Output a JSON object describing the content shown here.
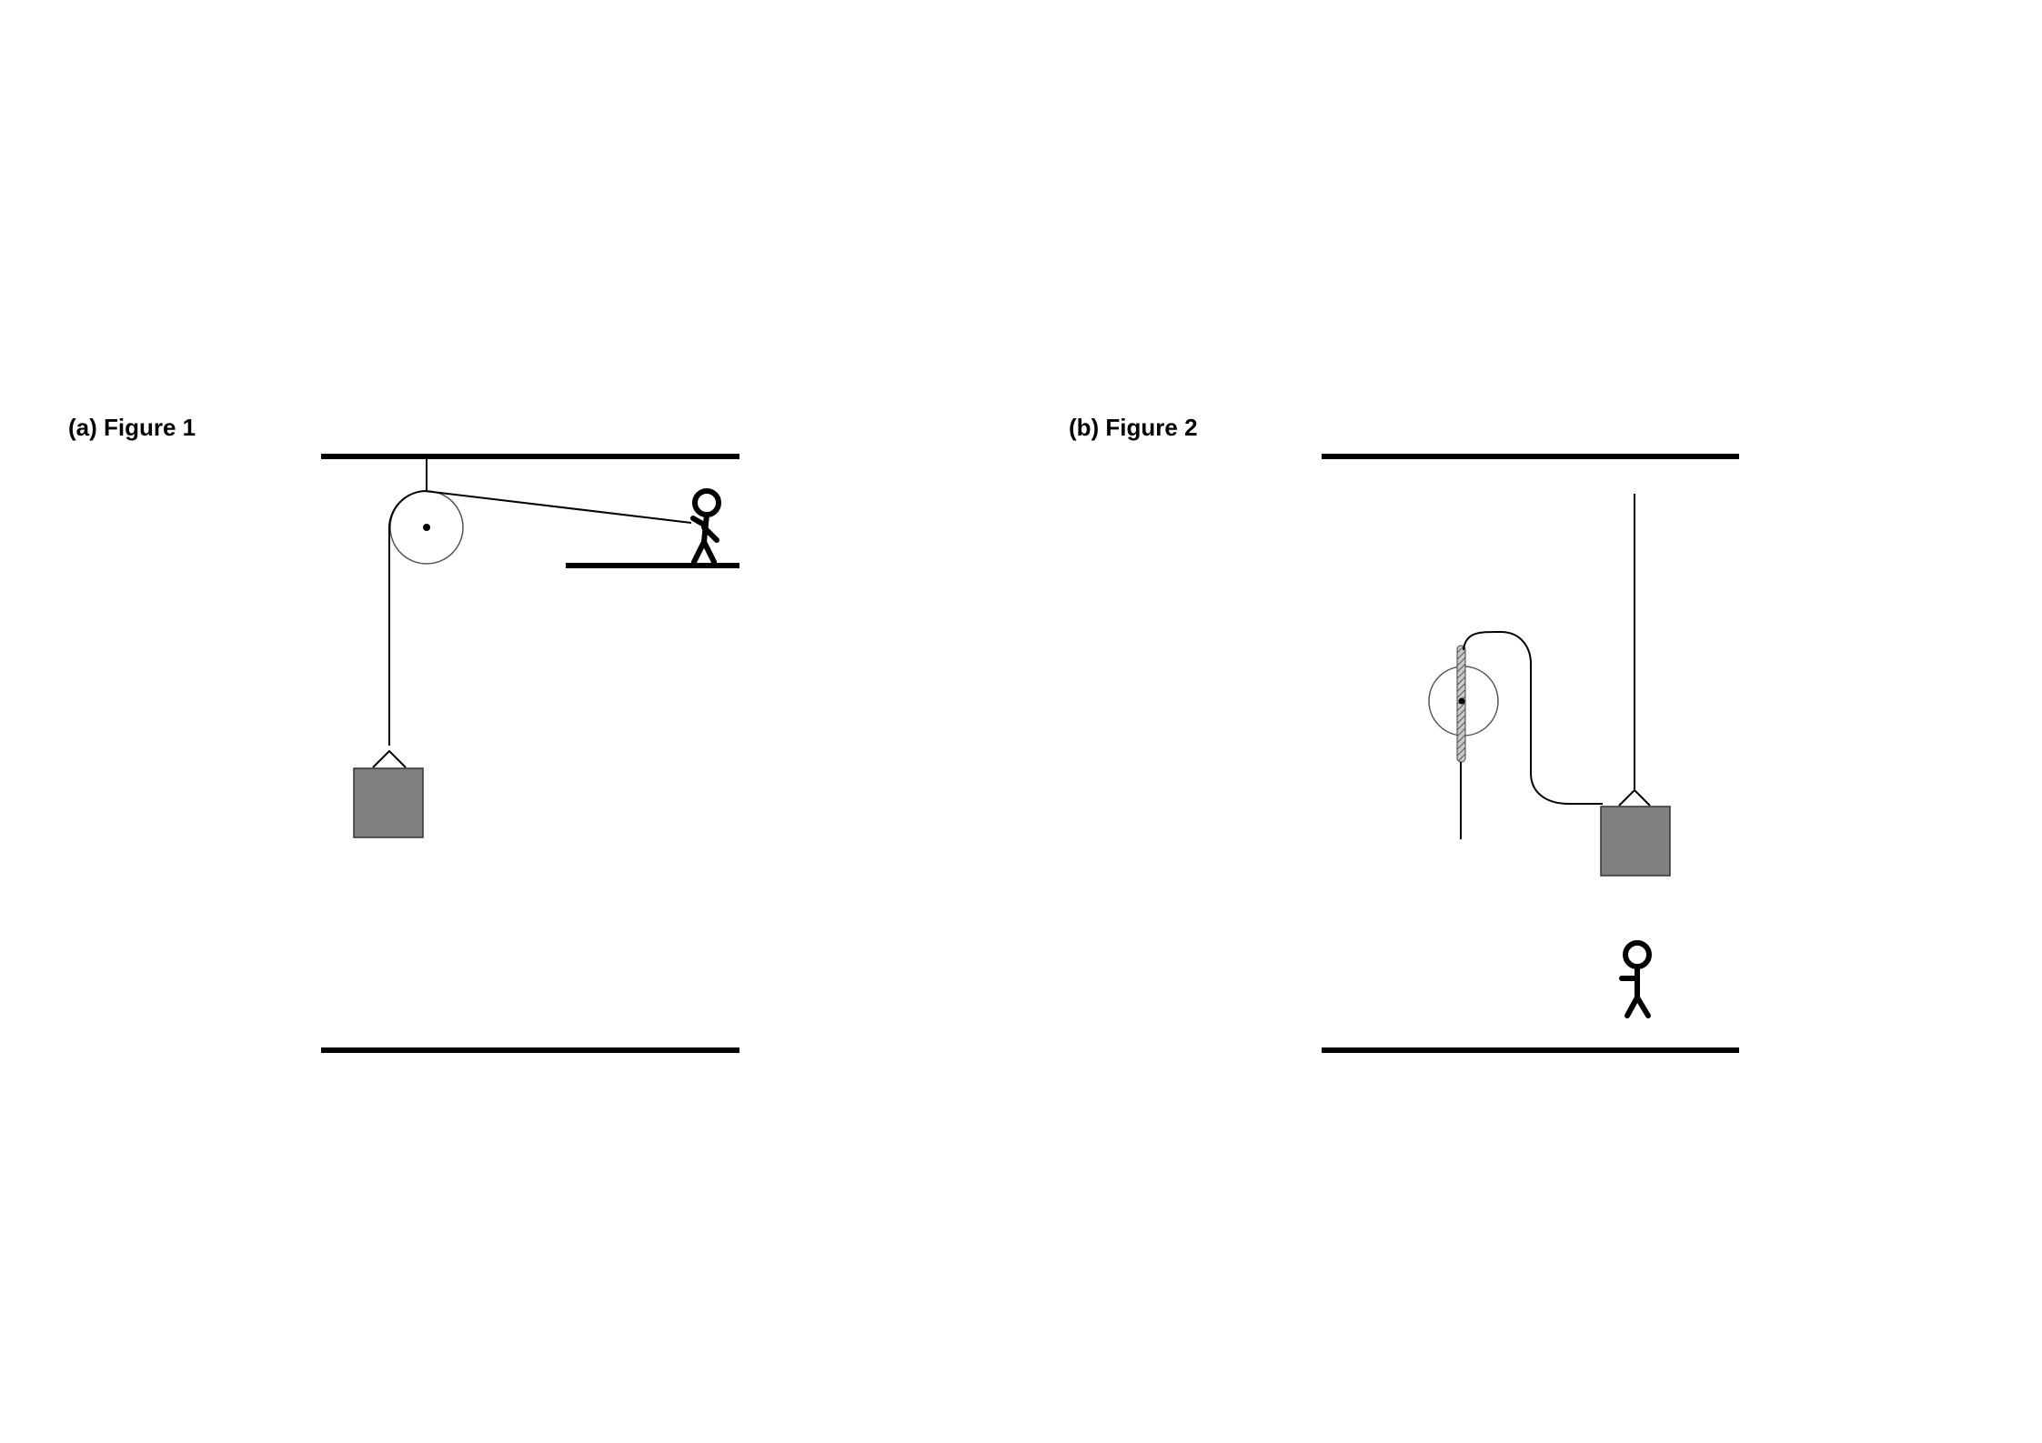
{
  "figures": [
    {
      "label": "(a) Figure 1",
      "elements": [
        "ceiling",
        "pulley",
        "rope",
        "hanging block",
        "ledge",
        "stick figure pulling rope",
        "floor"
      ]
    },
    {
      "label": "(b) Figure 2",
      "elements": [
        "ceiling",
        "pulley",
        "rod",
        "rope",
        "suspended block",
        "standing stick figure",
        "floor"
      ]
    }
  ],
  "colors": {
    "line": "#000000",
    "block_fill": "#808080",
    "pulley_stroke": "#555555",
    "rod_fill": "#b0b0b0"
  }
}
